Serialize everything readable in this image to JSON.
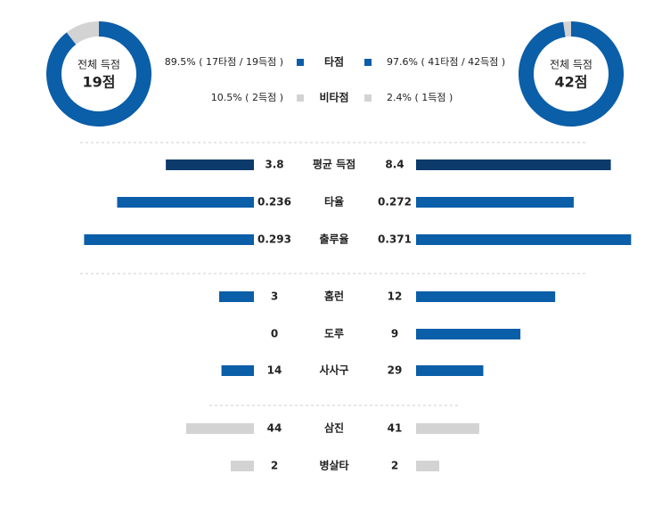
{
  "legend": {
    "names": [
      "타점",
      "비타점"
    ],
    "colors": [
      "#0b5ea8",
      "#d3d3d3"
    ]
  },
  "donuts": [
    {
      "label": "전체 득점",
      "total": "19점",
      "values": [
        89.5,
        10.5
      ],
      "value_labels": [
        "89.5% ( 17타점 / 19득점 )",
        "10.5% ( 2득점 )"
      ]
    },
    {
      "label": "전체 득점",
      "total": "42점",
      "values": [
        97.6,
        2.4
      ],
      "value_labels": [
        "97.6% ( 41타점 / 42득점 )",
        "2.4% ( 1득점 )"
      ]
    }
  ],
  "stats": [
    {
      "name": "평균 득점",
      "values": [
        3.8,
        8.4
      ],
      "xlim": [
        0,
        9.3
      ],
      "color": "#0c3a6b"
    },
    {
      "name": "타율",
      "values": [
        0.236,
        0.272
      ],
      "xlim": [
        0,
        0.372
      ],
      "color": "#0b5ea8"
    },
    {
      "name": "출루율",
      "values": [
        0.293,
        0.371
      ],
      "xlim": [
        0,
        0.372
      ],
      "color": "#0b5ea8"
    },
    {
      "name": "홈런",
      "values": [
        3,
        12
      ],
      "xlim": [
        0,
        18.6
      ],
      "color": "#0b5ea8"
    },
    {
      "name": "도루",
      "values": [
        0,
        9
      ],
      "xlim": [
        0,
        18.6
      ],
      "color": "#0b5ea8"
    },
    {
      "name": "사사구",
      "values": [
        14,
        29
      ],
      "xlim": [
        0,
        93
      ],
      "color": "#0b5ea8"
    },
    {
      "name": "삼진",
      "values": [
        44,
        41
      ],
      "xlim": [
        0,
        140
      ],
      "color": "#d3d3d3"
    },
    {
      "name": "병살타",
      "values": [
        2,
        2
      ],
      "xlim": [
        0,
        18.6
      ],
      "color": "#d3d3d3"
    }
  ]
}
